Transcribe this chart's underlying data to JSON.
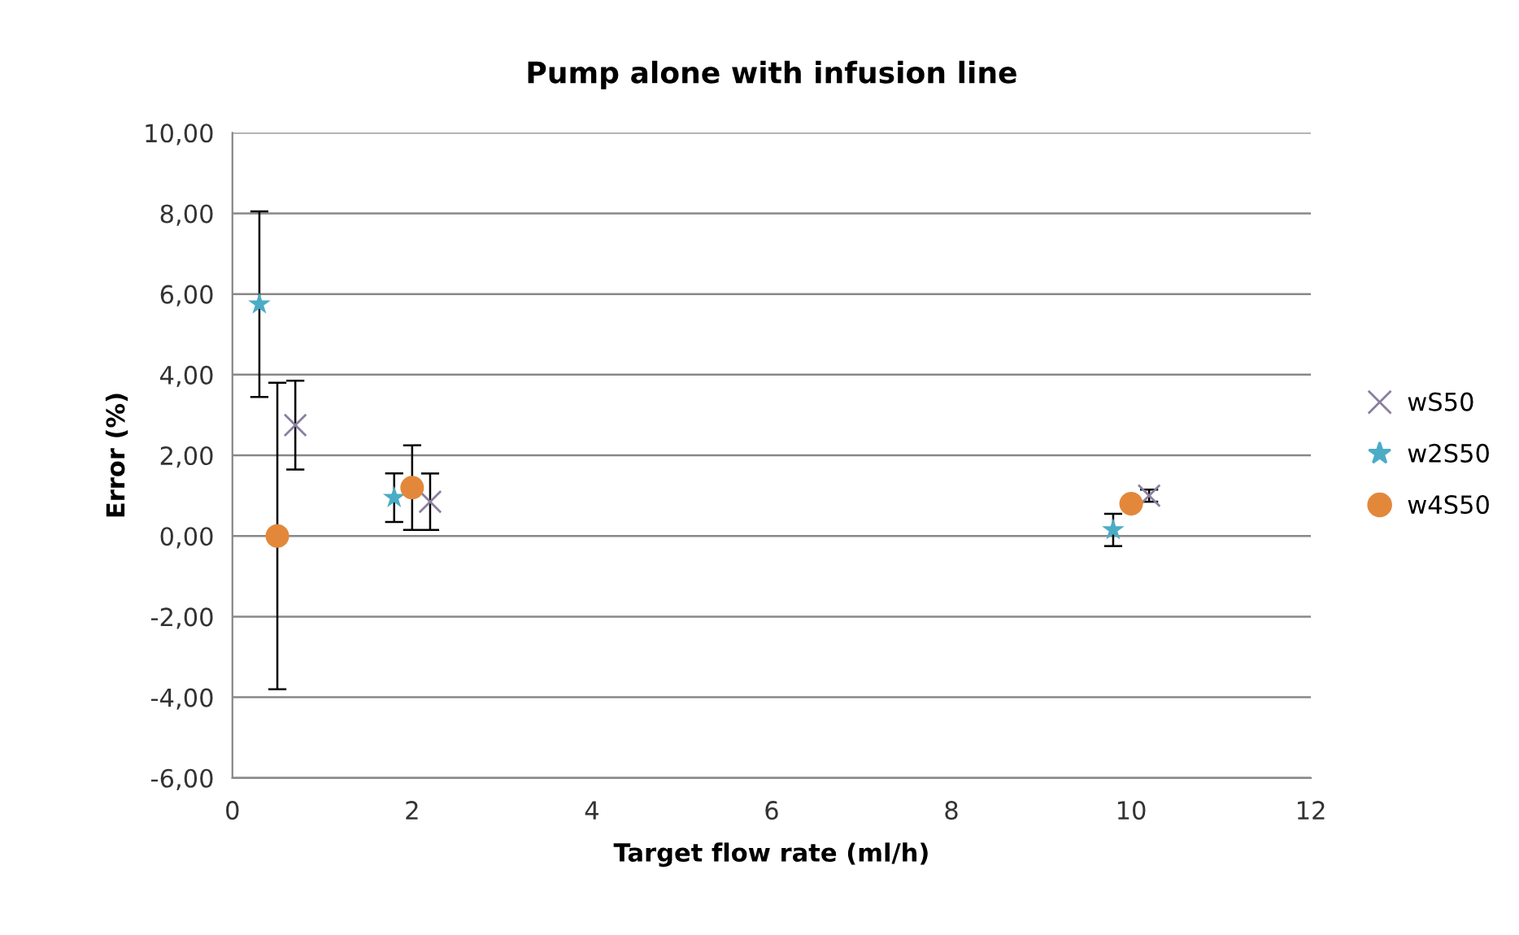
{
  "chart_data": {
    "type": "scatter",
    "title": "Pump alone with infusion line",
    "xlabel": "Target flow rate (ml/h)",
    "ylabel": "Error (%)",
    "xlim": [
      0,
      12
    ],
    "xticks": [
      0,
      2,
      4,
      6,
      8,
      10,
      12
    ],
    "ylim": [
      -6,
      10
    ],
    "yticks": [
      {
        "value": -6,
        "label": "-6,00"
      },
      {
        "value": -4,
        "label": "-4,00"
      },
      {
        "value": -2,
        "label": "-2,00"
      },
      {
        "value": 0,
        "label": "0,00"
      },
      {
        "value": 2,
        "label": "2,00"
      },
      {
        "value": 4,
        "label": "4,00"
      },
      {
        "value": 6,
        "label": "6,00"
      },
      {
        "value": 8,
        "label": "8,00"
      },
      {
        "value": 10,
        "label": "10,00"
      }
    ],
    "grid": "y",
    "legend": "right",
    "series": [
      {
        "name": "wS50",
        "color": "#8a7fa0",
        "marker": "cross",
        "x": [
          0.7,
          2.2,
          10.2
        ],
        "values": [
          2.75,
          0.85,
          1.0
        ],
        "errors": [
          1.1,
          0.7,
          0.15
        ]
      },
      {
        "name": "w2S50",
        "color": "#4bacc6",
        "marker": "star",
        "x": [
          0.3,
          1.8,
          9.8
        ],
        "values": [
          5.75,
          0.95,
          0.15
        ],
        "errors": [
          2.3,
          0.6,
          0.4
        ]
      },
      {
        "name": "w4S50",
        "color": "#e3883b",
        "marker": "circle",
        "x": [
          0.5,
          2.0,
          10.0
        ],
        "values": [
          0.0,
          1.2,
          0.8
        ],
        "errors": [
          3.8,
          1.05,
          null
        ]
      }
    ]
  }
}
